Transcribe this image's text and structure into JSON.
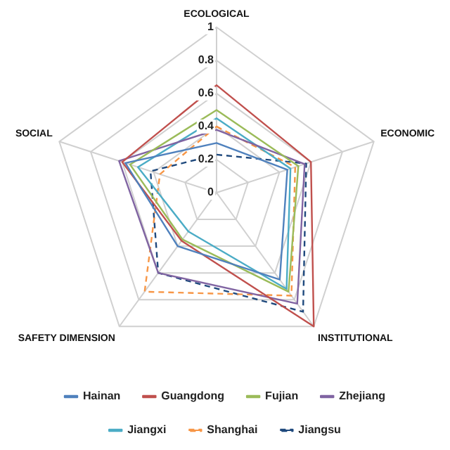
{
  "chart_data": {
    "type": "radar",
    "categories": [
      "ECOLOGICAL",
      "ECONOMIC",
      "INSTITUTIONAL",
      "SAFETY DIMENSION",
      "SOCIAL"
    ],
    "ylim": [
      0,
      1
    ],
    "yticks": [
      0,
      0.2,
      0.4,
      0.6,
      0.8,
      1
    ],
    "grid": true,
    "legend": "bottom",
    "marker": "none",
    "series": [
      {
        "name": "Hainan",
        "color": "#4f81bd",
        "values": [
          0.3,
          0.45,
          0.65,
          0.4,
          0.58
        ]
      },
      {
        "name": "Guangdong",
        "color": "#c0504d",
        "values": [
          0.65,
          0.6,
          1.0,
          0.36,
          0.6
        ]
      },
      {
        "name": "Fujian",
        "color": "#9bbb59",
        "values": [
          0.5,
          0.52,
          0.74,
          0.35,
          0.55
        ]
      },
      {
        "name": "Zhejiang",
        "color": "#8064a2",
        "values": [
          0.38,
          0.56,
          0.83,
          0.6,
          0.62
        ]
      },
      {
        "name": "Jiangxi",
        "color": "#4bacc6",
        "values": [
          0.45,
          0.47,
          0.72,
          0.29,
          0.5
        ]
      },
      {
        "name": "Shanghai",
        "color": "#f79646",
        "line_style": "dashed",
        "values": [
          0.4,
          0.5,
          0.77,
          0.74,
          0.36
        ]
      },
      {
        "name": "Jiangsu",
        "color": "#1f497d",
        "line_style": "dashed",
        "values": [
          0.23,
          0.57,
          0.89,
          0.6,
          0.42
        ]
      }
    ]
  }
}
